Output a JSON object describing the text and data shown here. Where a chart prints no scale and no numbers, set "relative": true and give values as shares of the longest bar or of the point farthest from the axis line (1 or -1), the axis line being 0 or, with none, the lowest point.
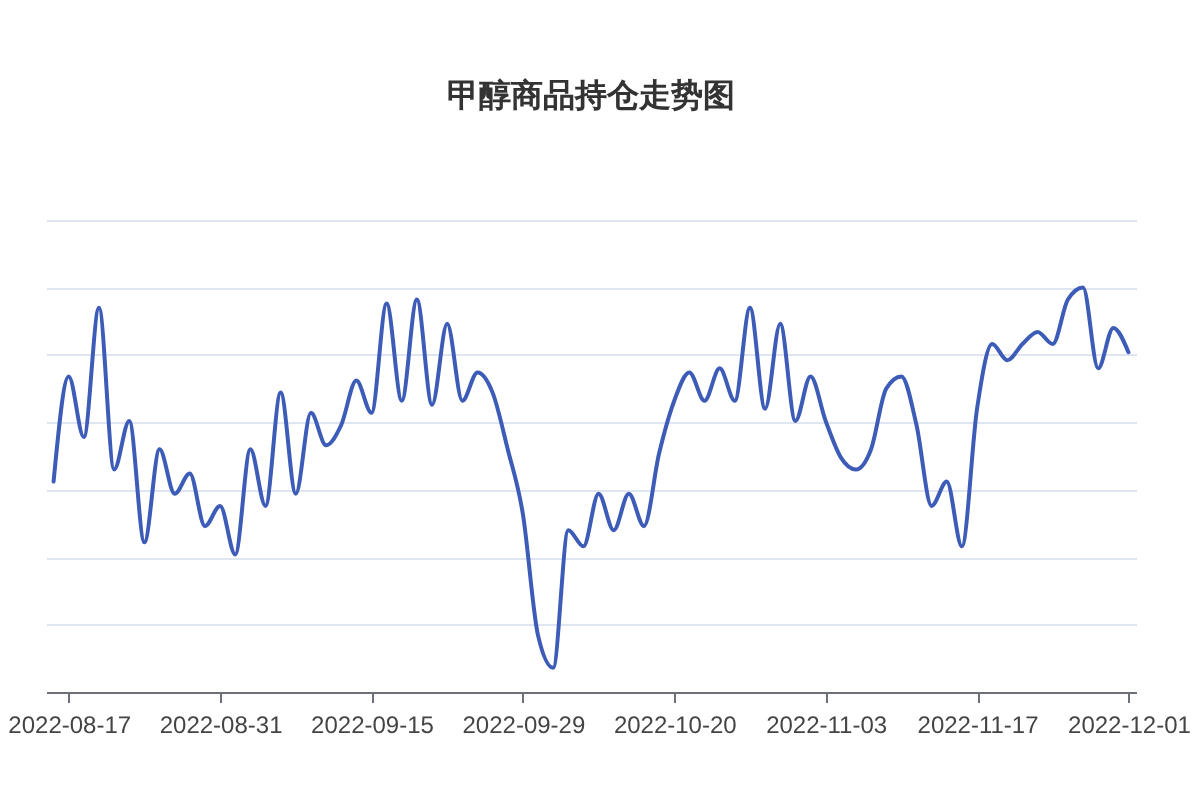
{
  "chart_data": {
    "type": "line",
    "title": "甲醇商品持仓走势图",
    "categories": [
      null,
      "2022-08-17",
      null,
      null,
      null,
      null,
      null,
      null,
      null,
      null,
      null,
      "2022-08-31",
      null,
      null,
      null,
      null,
      null,
      null,
      null,
      null,
      null,
      "2022-09-15",
      null,
      null,
      null,
      null,
      null,
      null,
      null,
      null,
      null,
      "2022-09-29",
      null,
      null,
      null,
      null,
      null,
      null,
      null,
      null,
      null,
      "2022-10-20",
      null,
      null,
      null,
      null,
      null,
      null,
      null,
      null,
      null,
      "2022-11-03",
      null,
      null,
      null,
      null,
      null,
      null,
      null,
      null,
      null,
      "2022-11-17",
      null,
      null,
      null,
      null,
      null,
      null,
      null,
      null,
      null,
      "2022-12-01"
    ],
    "relative": true,
    "grid": "y",
    "series": [
      {
        "color": "#3d5cb8",
        "values": [
          0.52,
          0.78,
          0.63,
          0.95,
          0.55,
          0.67,
          0.37,
          0.6,
          0.49,
          0.54,
          0.41,
          0.46,
          0.34,
          0.6,
          0.46,
          0.74,
          0.49,
          0.69,
          0.61,
          0.66,
          0.77,
          0.69,
          0.96,
          0.72,
          0.97,
          0.71,
          0.91,
          0.72,
          0.79,
          0.74,
          0.6,
          0.44,
          0.14,
          0.06,
          0.4,
          0.36,
          0.49,
          0.4,
          0.49,
          0.41,
          0.59,
          0.72,
          0.79,
          0.72,
          0.8,
          0.72,
          0.95,
          0.7,
          0.91,
          0.67,
          0.78,
          0.67,
          0.58,
          0.55,
          0.6,
          0.75,
          0.78,
          0.66,
          0.46,
          0.52,
          0.36,
          0.7,
          0.86,
          0.82,
          0.86,
          0.89,
          0.86,
          0.97,
          1.0,
          0.8,
          0.9,
          0.84
        ]
      }
    ]
  }
}
